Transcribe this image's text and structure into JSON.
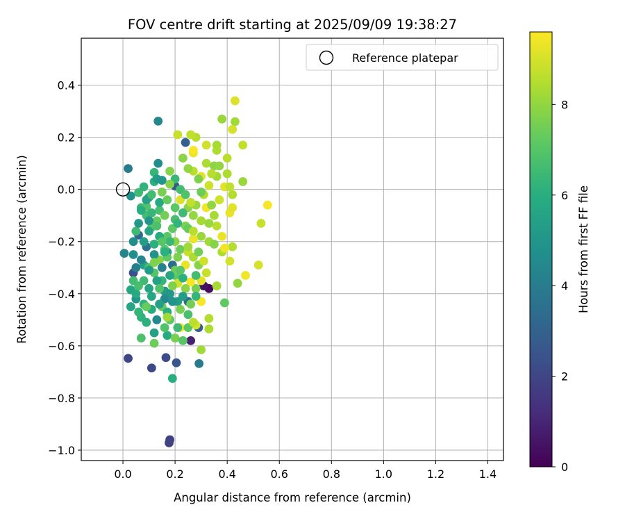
{
  "chart_data": {
    "type": "scatter",
    "title": "FOV centre drift starting at 2025/09/09 19:38:27",
    "xlabel": "Angular distance from reference (arcmin)",
    "ylabel": "Rotation from reference (arcmin)",
    "xlim": [
      -0.16,
      1.46
    ],
    "ylim": [
      -1.04,
      0.58
    ],
    "xticks": [
      0.0,
      0.2,
      0.4,
      0.6,
      0.8,
      1.0,
      1.2,
      1.4
    ],
    "xtick_labels": [
      "0.0",
      "0.2",
      "0.4",
      "0.6",
      "0.8",
      "1.0",
      "1.2",
      "1.4"
    ],
    "yticks": [
      0.4,
      0.2,
      0.0,
      -0.2,
      -0.4,
      -0.6,
      -0.8,
      -1.0
    ],
    "ytick_labels": [
      "0.4",
      "0.2",
      "0.0",
      "−0.2",
      "−0.4",
      "−0.6",
      "−0.8",
      "−1.0"
    ],
    "grid": true,
    "legend": {
      "position": "top-right",
      "entries": [
        "Reference platepar"
      ]
    },
    "colorbar": {
      "label": "Hours from first FF file",
      "range": [
        0,
        9.6
      ],
      "ticks": [
        0,
        2,
        4,
        6,
        8
      ],
      "tick_labels": [
        "0",
        "2",
        "4",
        "6",
        "8"
      ],
      "colormap": "viridis"
    },
    "reference_point": {
      "x": 0.0,
      "y": 0.0,
      "label": "Reference platepar"
    },
    "series": [
      {
        "name": "FOV centre",
        "x_y_hours": [
          [
            0.33,
            -0.38,
            0.2
          ],
          [
            0.31,
            -0.37,
            0.5
          ],
          [
            0.26,
            -0.58,
            0.9
          ],
          [
            0.18,
            -0.96,
            1.8
          ],
          [
            0.177,
            -0.972,
            1.9
          ],
          [
            0.02,
            -0.648,
            2.0
          ],
          [
            0.11,
            -0.685,
            2.1
          ],
          [
            0.165,
            -0.645,
            2.2
          ],
          [
            0.205,
            -0.665,
            2.5
          ],
          [
            0.04,
            -0.32,
            2.3
          ],
          [
            0.2,
            0.013,
            2.6
          ],
          [
            0.29,
            -0.53,
            2.8
          ],
          [
            0.24,
            0.18,
            3.0
          ],
          [
            0.06,
            -0.175,
            3.2
          ],
          [
            0.19,
            -0.29,
            3.4
          ],
          [
            0.09,
            -0.22,
            3.6
          ],
          [
            0.25,
            -0.43,
            3.5
          ],
          [
            0.292,
            -0.668,
            3.9
          ],
          [
            0.02,
            0.08,
            4.0
          ],
          [
            0.135,
            0.262,
            4.4
          ],
          [
            0.135,
            0.1,
            4.6
          ],
          [
            0.005,
            -0.245,
            4.3
          ],
          [
            0.03,
            -0.025,
            4.8
          ],
          [
            0.05,
            -0.42,
            5.0
          ],
          [
            0.16,
            -0.39,
            5.2
          ],
          [
            0.21,
            -0.43,
            5.3
          ],
          [
            0.08,
            -0.29,
            5.5
          ],
          [
            0.1,
            -0.38,
            5.6
          ],
          [
            0.03,
            -0.385,
            5.7
          ],
          [
            0.12,
            -0.55,
            5.4
          ],
          [
            0.17,
            -0.56,
            5.9
          ],
          [
            0.17,
            -0.24,
            5.0
          ],
          [
            0.11,
            -0.46,
            5.8
          ],
          [
            0.07,
            -0.49,
            6.2
          ],
          [
            0.12,
            -0.21,
            6.1
          ],
          [
            0.15,
            -0.35,
            6.3
          ],
          [
            0.06,
            -0.012,
            6.5
          ],
          [
            0.07,
            -0.07,
            6.4
          ],
          [
            0.09,
            -0.1,
            6.6
          ],
          [
            0.05,
            -0.16,
            6.5
          ],
          [
            0.14,
            -0.08,
            6.7
          ],
          [
            0.16,
            -0.53,
            6.9
          ],
          [
            0.19,
            -0.725,
            6.0
          ],
          [
            0.1,
            -0.3,
            6.8
          ],
          [
            0.12,
            -0.32,
            7.0
          ],
          [
            0.2,
            -0.33,
            7.1
          ],
          [
            0.18,
            -0.5,
            7.2
          ],
          [
            0.15,
            -0.45,
            7.3
          ],
          [
            0.26,
            -0.44,
            7.5
          ],
          [
            0.28,
            -0.38,
            7.6
          ],
          [
            0.22,
            -0.23,
            7.4
          ],
          [
            0.24,
            -0.14,
            7.7
          ],
          [
            0.18,
            0.07,
            7.8
          ],
          [
            0.2,
            -0.2,
            7.9
          ],
          [
            0.27,
            -0.1,
            8.0
          ],
          [
            0.3,
            -0.18,
            8.1
          ],
          [
            0.33,
            -0.2,
            8.2
          ],
          [
            0.35,
            -0.1,
            8.3
          ],
          [
            0.38,
            -0.24,
            8.4
          ],
          [
            0.42,
            -0.22,
            8.5
          ],
          [
            0.44,
            -0.36,
            8.0
          ],
          [
            0.39,
            -0.435,
            7.2
          ],
          [
            0.3,
            -0.615,
            8.2
          ],
          [
            0.33,
            -0.535,
            8.4
          ],
          [
            0.33,
            -0.495,
            8.5
          ],
          [
            0.36,
            -0.14,
            8.6
          ],
          [
            0.38,
            0.27,
            8.1
          ],
          [
            0.43,
            0.26,
            8.2
          ],
          [
            0.36,
            0.17,
            8.3
          ],
          [
            0.32,
            0.1,
            8.4
          ],
          [
            0.28,
            0.2,
            8.5
          ],
          [
            0.26,
            0.21,
            8.7
          ],
          [
            0.21,
            0.21,
            8.8
          ],
          [
            0.32,
            0.17,
            8.9
          ],
          [
            0.4,
            0.12,
            8.6
          ],
          [
            0.46,
            0.17,
            8.7
          ],
          [
            0.42,
            0.23,
            9.0
          ],
          [
            0.43,
            0.34,
            9.1
          ],
          [
            0.27,
            0.14,
            9.3
          ],
          [
            0.3,
            0.05,
            9.2
          ],
          [
            0.4,
            0.06,
            8.4
          ],
          [
            0.46,
            0.03,
            8.1
          ],
          [
            0.35,
            0.09,
            7.9
          ],
          [
            0.27,
            0.07,
            8.6
          ],
          [
            0.33,
            0.015,
            8.9
          ],
          [
            0.39,
            0.01,
            9.2
          ],
          [
            0.42,
            -0.02,
            8.5
          ],
          [
            0.47,
            -0.33,
            9.4
          ],
          [
            0.52,
            -0.29,
            9.0
          ],
          [
            0.53,
            -0.13,
            8.8
          ],
          [
            0.555,
            -0.06,
            9.5
          ],
          [
            0.38,
            -0.18,
            9.3
          ],
          [
            0.39,
            -0.225,
            9.4
          ],
          [
            0.41,
            -0.09,
            9.3
          ],
          [
            0.42,
            -0.07,
            9.2
          ],
          [
            0.32,
            -0.07,
            9.4
          ],
          [
            0.3,
            -0.43,
            9.5
          ],
          [
            0.26,
            -0.355,
            9.5
          ],
          [
            0.22,
            -0.53,
            9.4
          ],
          [
            0.27,
            -0.19,
            9.3
          ],
          [
            0.25,
            -0.24,
            8.8
          ],
          [
            0.22,
            -0.04,
            9.1
          ],
          [
            0.28,
            -0.52,
            9.0
          ],
          [
            0.3,
            -0.35,
            9.2
          ],
          [
            0.37,
            -0.04,
            8.9
          ],
          [
            0.27,
            0.15,
            9.5
          ],
          [
            0.41,
            -0.275,
            9.0
          ],
          [
            0.32,
            -0.32,
            8.8
          ],
          [
            0.27,
            -0.26,
            8.4
          ],
          [
            0.29,
            -0.29,
            7.8
          ],
          [
            0.24,
            -0.29,
            9.3
          ],
          [
            0.21,
            -0.36,
            8.9
          ],
          [
            0.09,
            -0.065,
            6.9
          ],
          [
            0.11,
            -0.145,
            7.0
          ],
          [
            0.17,
            -0.18,
            7.1
          ],
          [
            0.13,
            -0.12,
            7.3
          ],
          [
            0.16,
            -0.1,
            7.5
          ],
          [
            0.19,
            -0.15,
            7.2
          ],
          [
            0.21,
            -0.26,
            7.7
          ],
          [
            0.14,
            -0.27,
            7.8
          ],
          [
            0.08,
            -0.35,
            6.5
          ],
          [
            0.06,
            -0.47,
            6.3
          ],
          [
            0.09,
            -0.51,
            6.1
          ],
          [
            0.07,
            -0.57,
            6.8
          ],
          [
            0.12,
            -0.59,
            7.4
          ],
          [
            0.2,
            -0.57,
            7.6
          ],
          [
            0.23,
            -0.58,
            7.0
          ],
          [
            0.25,
            -0.48,
            6.7
          ],
          [
            0.28,
            -0.41,
            6.3
          ],
          [
            0.23,
            -0.34,
            6.1
          ],
          [
            0.18,
            -0.4,
            5.1
          ],
          [
            0.16,
            -0.42,
            4.5
          ],
          [
            0.15,
            -0.3,
            4.2
          ],
          [
            0.12,
            -0.25,
            4.9
          ],
          [
            0.08,
            -0.2,
            5.3
          ],
          [
            0.1,
            -0.16,
            5.6
          ],
          [
            0.14,
            -0.05,
            5.8
          ],
          [
            0.1,
            -0.03,
            6.0
          ],
          [
            0.12,
            0.03,
            6.1
          ],
          [
            0.08,
            0.01,
            6.2
          ],
          [
            0.12,
            0.065,
            6.3
          ],
          [
            0.2,
            0.04,
            6.4
          ],
          [
            0.22,
            0.0,
            6.6
          ],
          [
            0.24,
            -0.02,
            6.9
          ],
          [
            0.2,
            -0.07,
            7.1
          ],
          [
            0.17,
            -0.04,
            7.3
          ],
          [
            0.15,
            -0.01,
            7.6
          ],
          [
            0.18,
            0.02,
            7.8
          ],
          [
            0.25,
            -0.07,
            7.9
          ],
          [
            0.28,
            -0.06,
            8.1
          ],
          [
            0.3,
            -0.12,
            8.3
          ],
          [
            0.34,
            -0.06,
            8.0
          ],
          [
            0.31,
            -0.02,
            8.5
          ],
          [
            0.36,
            0.05,
            8.2
          ],
          [
            0.37,
            0.09,
            8.0
          ],
          [
            0.41,
            0.01,
            8.7
          ],
          [
            0.36,
            0.15,
            8.4
          ],
          [
            0.34,
            0.06,
            8.6
          ],
          [
            0.29,
            0.04,
            7.7
          ],
          [
            0.3,
            -0.01,
            7.4
          ],
          [
            0.2,
            -0.115,
            6.7
          ],
          [
            0.23,
            -0.09,
            6.5
          ],
          [
            0.25,
            -0.15,
            7.3
          ],
          [
            0.21,
            -0.13,
            6.2
          ],
          [
            0.18,
            -0.2,
            6.4
          ],
          [
            0.16,
            -0.23,
            6.9
          ],
          [
            0.14,
            -0.18,
            5.9
          ],
          [
            0.13,
            -0.35,
            5.5
          ],
          [
            0.1,
            -0.31,
            5.2
          ],
          [
            0.11,
            -0.41,
            5.7
          ],
          [
            0.14,
            -0.44,
            5.4
          ],
          [
            0.17,
            -0.47,
            6.0
          ],
          [
            0.19,
            -0.43,
            4.9
          ],
          [
            0.22,
            -0.46,
            7.6
          ],
          [
            0.05,
            -0.4,
            5.8
          ],
          [
            0.04,
            -0.25,
            4.7
          ],
          [
            0.03,
            -0.45,
            5.6
          ],
          [
            0.08,
            -0.44,
            6.2
          ],
          [
            0.05,
            -0.3,
            4.1
          ],
          [
            0.07,
            -0.27,
            4.4
          ],
          [
            0.06,
            -0.13,
            5.1
          ],
          [
            0.04,
            -0.2,
            4.6
          ],
          [
            0.09,
            -0.04,
            5.4
          ],
          [
            0.11,
            -0.09,
            6.3
          ],
          [
            0.13,
            -0.14,
            6.8
          ],
          [
            0.15,
            -0.2,
            7.0
          ],
          [
            0.17,
            -0.26,
            7.2
          ],
          [
            0.2,
            -0.31,
            7.4
          ],
          [
            0.24,
            -0.38,
            7.9
          ],
          [
            0.25,
            -0.22,
            8.2
          ],
          [
            0.27,
            -0.16,
            8.6
          ],
          [
            0.29,
            -0.24,
            7.5
          ],
          [
            0.28,
            -0.33,
            6.6
          ],
          [
            0.31,
            -0.275,
            8.9
          ],
          [
            0.33,
            -0.13,
            8.1
          ],
          [
            0.35,
            -0.21,
            7.8
          ],
          [
            0.36,
            -0.37,
            8.3
          ],
          [
            0.26,
            -0.05,
            8.7
          ],
          [
            0.23,
            0.12,
            7.9
          ],
          [
            0.25,
            0.08,
            8.0
          ],
          [
            0.13,
            0.04,
            5.3
          ],
          [
            0.15,
            0.035,
            5.0
          ],
          [
            0.11,
            -0.02,
            6.6
          ],
          [
            0.1,
            -0.12,
            5.0
          ],
          [
            0.07,
            -0.08,
            6.0
          ],
          [
            0.12,
            -0.28,
            7.7
          ],
          [
            0.14,
            -0.38,
            6.9
          ],
          [
            0.18,
            -0.33,
            5.6
          ],
          [
            0.21,
            -0.53,
            6.5
          ],
          [
            0.25,
            -0.53,
            7.1
          ],
          [
            0.17,
            -0.49,
            8.2
          ],
          [
            0.09,
            -0.45,
            7.3
          ],
          [
            0.06,
            -0.37,
            6.7
          ],
          [
            0.13,
            -0.5,
            4.5
          ],
          [
            0.27,
            -0.51,
            8.6
          ],
          [
            0.22,
            -0.31,
            7.0
          ],
          [
            0.04,
            -0.35,
            6.6
          ],
          [
            0.16,
            -0.24,
            6.1
          ],
          [
            0.19,
            -0.37,
            7.7
          ],
          [
            0.23,
            -0.41,
            5.3
          ]
        ]
      }
    ]
  }
}
